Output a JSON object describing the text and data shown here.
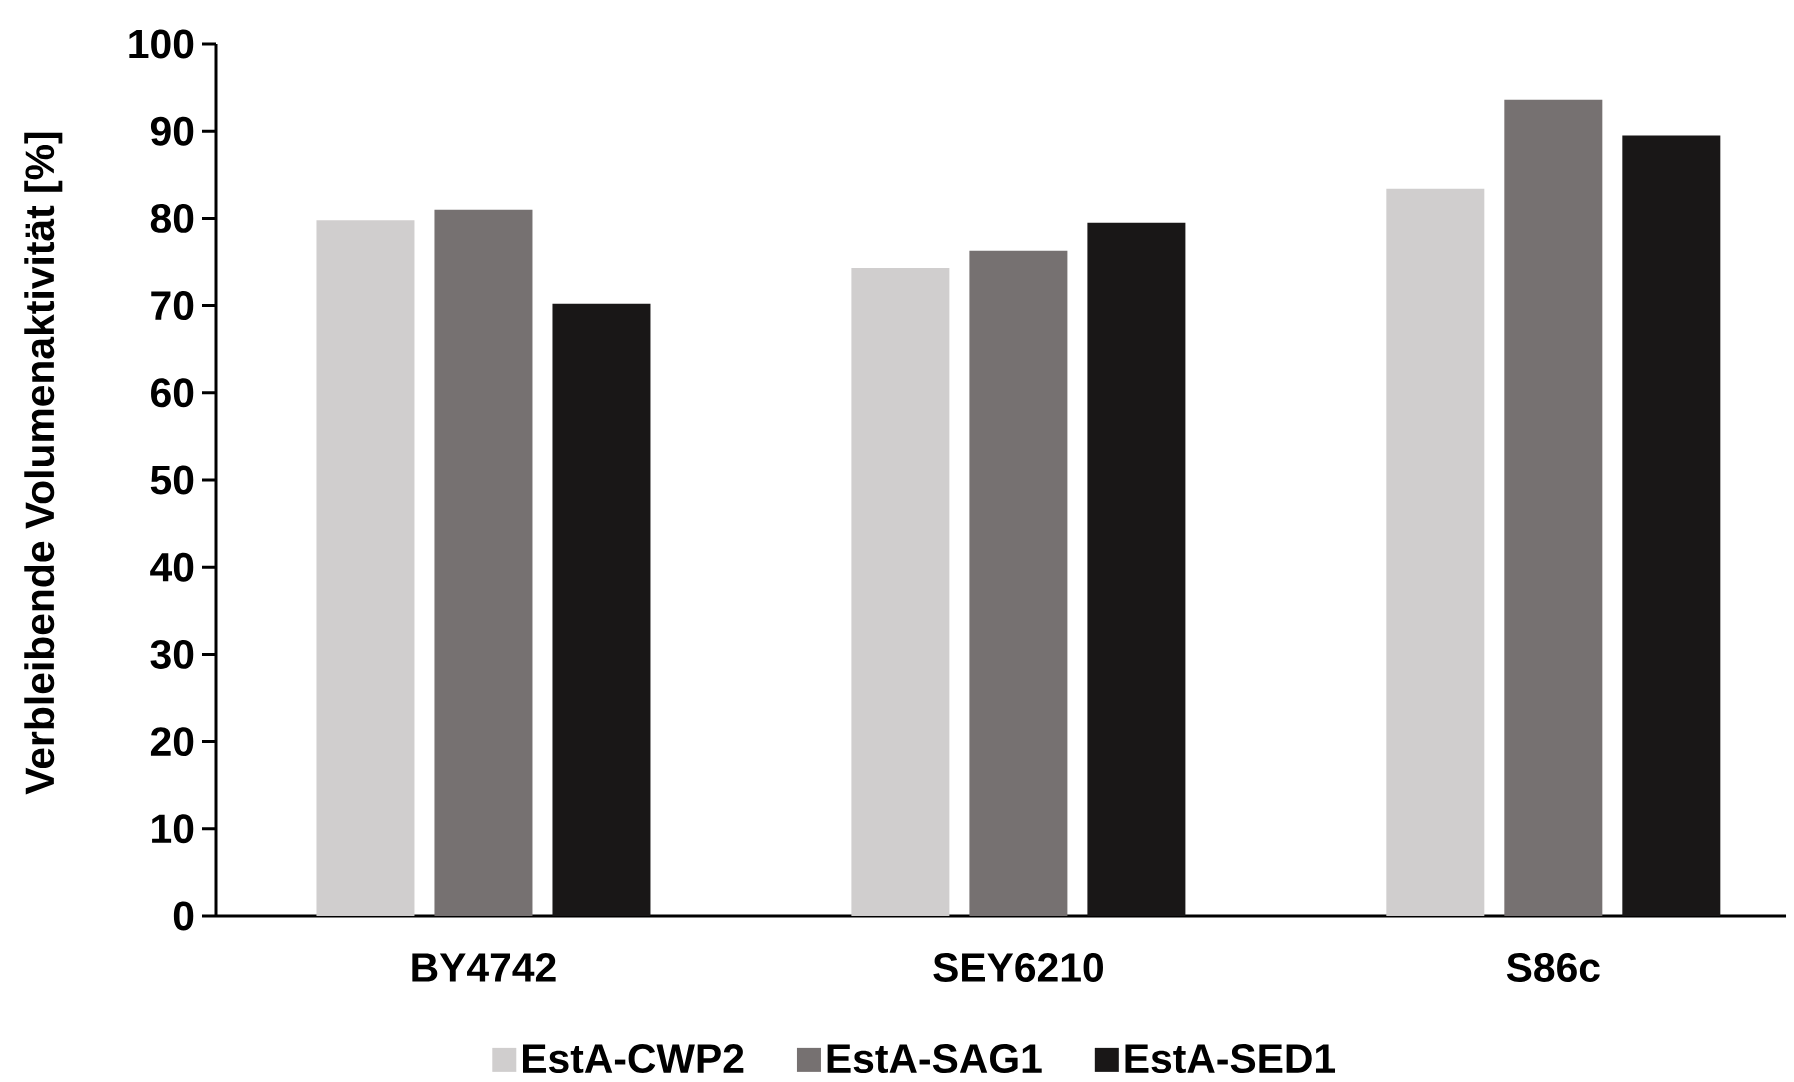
{
  "chart_data": {
    "type": "bar",
    "ylabel": "Verbleibende Volumenaktivität [%]",
    "categories": [
      "BY4742",
      "SEY6210",
      "S86c"
    ],
    "series": [
      {
        "name": "EstA-CWP2",
        "color": "#d0cece",
        "values": [
          79.8,
          74.3,
          83.4
        ]
      },
      {
        "name": "EstA-SAG1",
        "color": "#767171",
        "values": [
          81.0,
          76.3,
          93.6
        ]
      },
      {
        "name": "EstA-SED1",
        "color": "#191717",
        "values": [
          70.2,
          79.5,
          89.5
        ]
      }
    ],
    "ylim": [
      0,
      100
    ],
    "yticks": [
      0,
      10,
      20,
      30,
      40,
      50,
      60,
      70,
      80,
      90,
      100
    ],
    "legend": "bottom"
  }
}
